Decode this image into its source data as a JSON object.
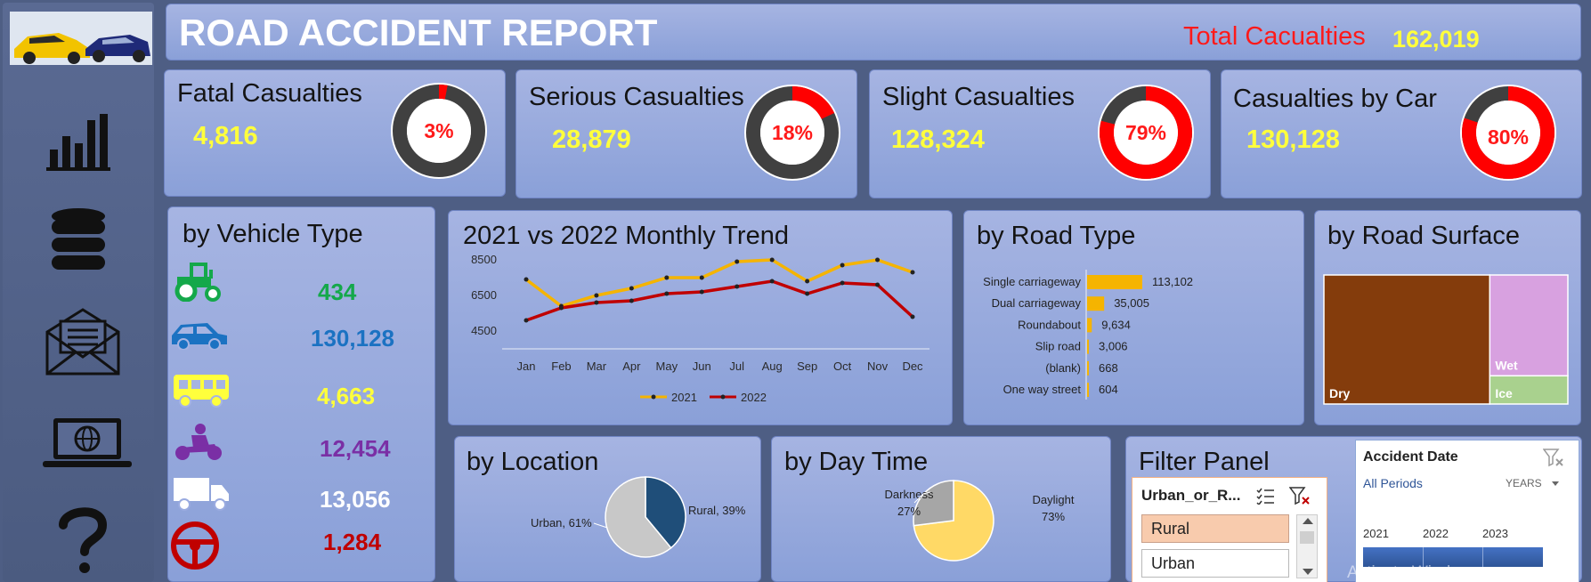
{
  "header": {
    "title": "ROAD ACCIDENT REPORT",
    "total_label": "Total Cacualties",
    "total_value": "162,019"
  },
  "sidebar": {
    "icons": [
      "car-crash-image",
      "bar-chart-icon",
      "database-icon",
      "mail-icon",
      "laptop-globe-icon",
      "question-icon"
    ]
  },
  "kpis": [
    {
      "label": "Fatal Casualties",
      "value": "4,816",
      "pct_label": "3%",
      "pct": 0.03
    },
    {
      "label": "Serious Casualties",
      "value": "28,879",
      "pct_label": "18%",
      "pct": 0.18
    },
    {
      "label": "Slight Casualties",
      "value": "128,324",
      "pct_label": "79%",
      "pct": 0.79
    },
    {
      "label": "Casualties by Car",
      "value": "130,128",
      "pct_label": "80%",
      "pct": 0.8
    }
  ],
  "vehicle": {
    "title": "by Vehicle Type",
    "items": [
      {
        "icon": "tractor-icon",
        "value": "434",
        "color": "#14a84a"
      },
      {
        "icon": "car-icon",
        "value": "130,128",
        "color": "#1b72c2"
      },
      {
        "icon": "bus-icon",
        "value": "4,663",
        "color": "#ffff3c"
      },
      {
        "icon": "motorbike-icon",
        "value": "12,454",
        "color": "#7a2fa5"
      },
      {
        "icon": "truck-icon",
        "value": "13,056",
        "color": "#ffffff"
      },
      {
        "icon": "steering-wheel-icon",
        "value": "1,284",
        "color": "#c00000"
      }
    ]
  },
  "trend": {
    "title": "2021 vs 2022 Monthly Trend"
  },
  "road": {
    "title": "by Road Type"
  },
  "surface": {
    "title": "by Road Surface",
    "labels": [
      "Dry",
      "Wet",
      "Ice"
    ]
  },
  "location": {
    "title": "by Location"
  },
  "daytime": {
    "title": "by Day Time"
  },
  "filter": {
    "title": "Filter Panel",
    "slicer_title": "Urban_or_R...",
    "options": [
      "Rural",
      "Urban"
    ],
    "date_title": "Accident Date",
    "all_periods": "All Periods",
    "years_label": "YEARS",
    "years": [
      "2021",
      "2022",
      "2023"
    ],
    "watermark": "Activate Windows"
  },
  "chart_data": [
    {
      "type": "line",
      "title": "2021 vs 2022 Monthly Trend",
      "categories": [
        "Jan",
        "Feb",
        "Mar",
        "Apr",
        "May",
        "Jun",
        "Jul",
        "Aug",
        "Sep",
        "Oct",
        "Nov",
        "Dec"
      ],
      "series": [
        {
          "name": "2021",
          "color": "#f5b400",
          "values": [
            7400,
            5900,
            6500,
            6900,
            7500,
            7500,
            8400,
            8500,
            7300,
            8200,
            8500,
            7800
          ]
        },
        {
          "name": "2022",
          "color": "#c00000",
          "values": [
            5100,
            5800,
            6100,
            6200,
            6600,
            6700,
            7000,
            7300,
            6600,
            7200,
            7100,
            5300
          ]
        }
      ],
      "yticks": [
        4500,
        6500,
        8500
      ],
      "ylim": [
        4500,
        9000
      ],
      "legend": "bottom"
    },
    {
      "type": "bar",
      "orientation": "horizontal",
      "title": "by Road Type",
      "categories": [
        "Single carriageway",
        "Dual carriageway",
        "Roundabout",
        "Slip road",
        "(blank)",
        "One way street"
      ],
      "values": [
        113102,
        35005,
        9634,
        3006,
        668,
        604
      ],
      "value_labels": [
        "113,102",
        "35,005",
        "9,634",
        "3,006",
        "668",
        "604"
      ],
      "color": "#f5b400"
    },
    {
      "type": "treemap",
      "title": "by Road Surface",
      "categories": [
        "Dry",
        "Wet",
        "Ice"
      ],
      "values": [
        0.68,
        0.25,
        0.07
      ],
      "colors": [
        "#843c0c",
        "#d8a1e0",
        "#a9d18e"
      ]
    },
    {
      "type": "pie",
      "title": "by Location",
      "labels": [
        "Rural, 39%",
        "Urban, 61%"
      ],
      "values": [
        39,
        61
      ],
      "colors": [
        "#1f4e79",
        "#c8c8c8"
      ]
    },
    {
      "type": "pie",
      "title": "by Day Time",
      "labels": [
        "Daylight",
        "Darkness"
      ],
      "pct_labels": [
        "73%",
        "27%"
      ],
      "values": [
        73,
        27
      ],
      "colors": [
        "#ffd966",
        "#a6a6a6"
      ]
    }
  ]
}
